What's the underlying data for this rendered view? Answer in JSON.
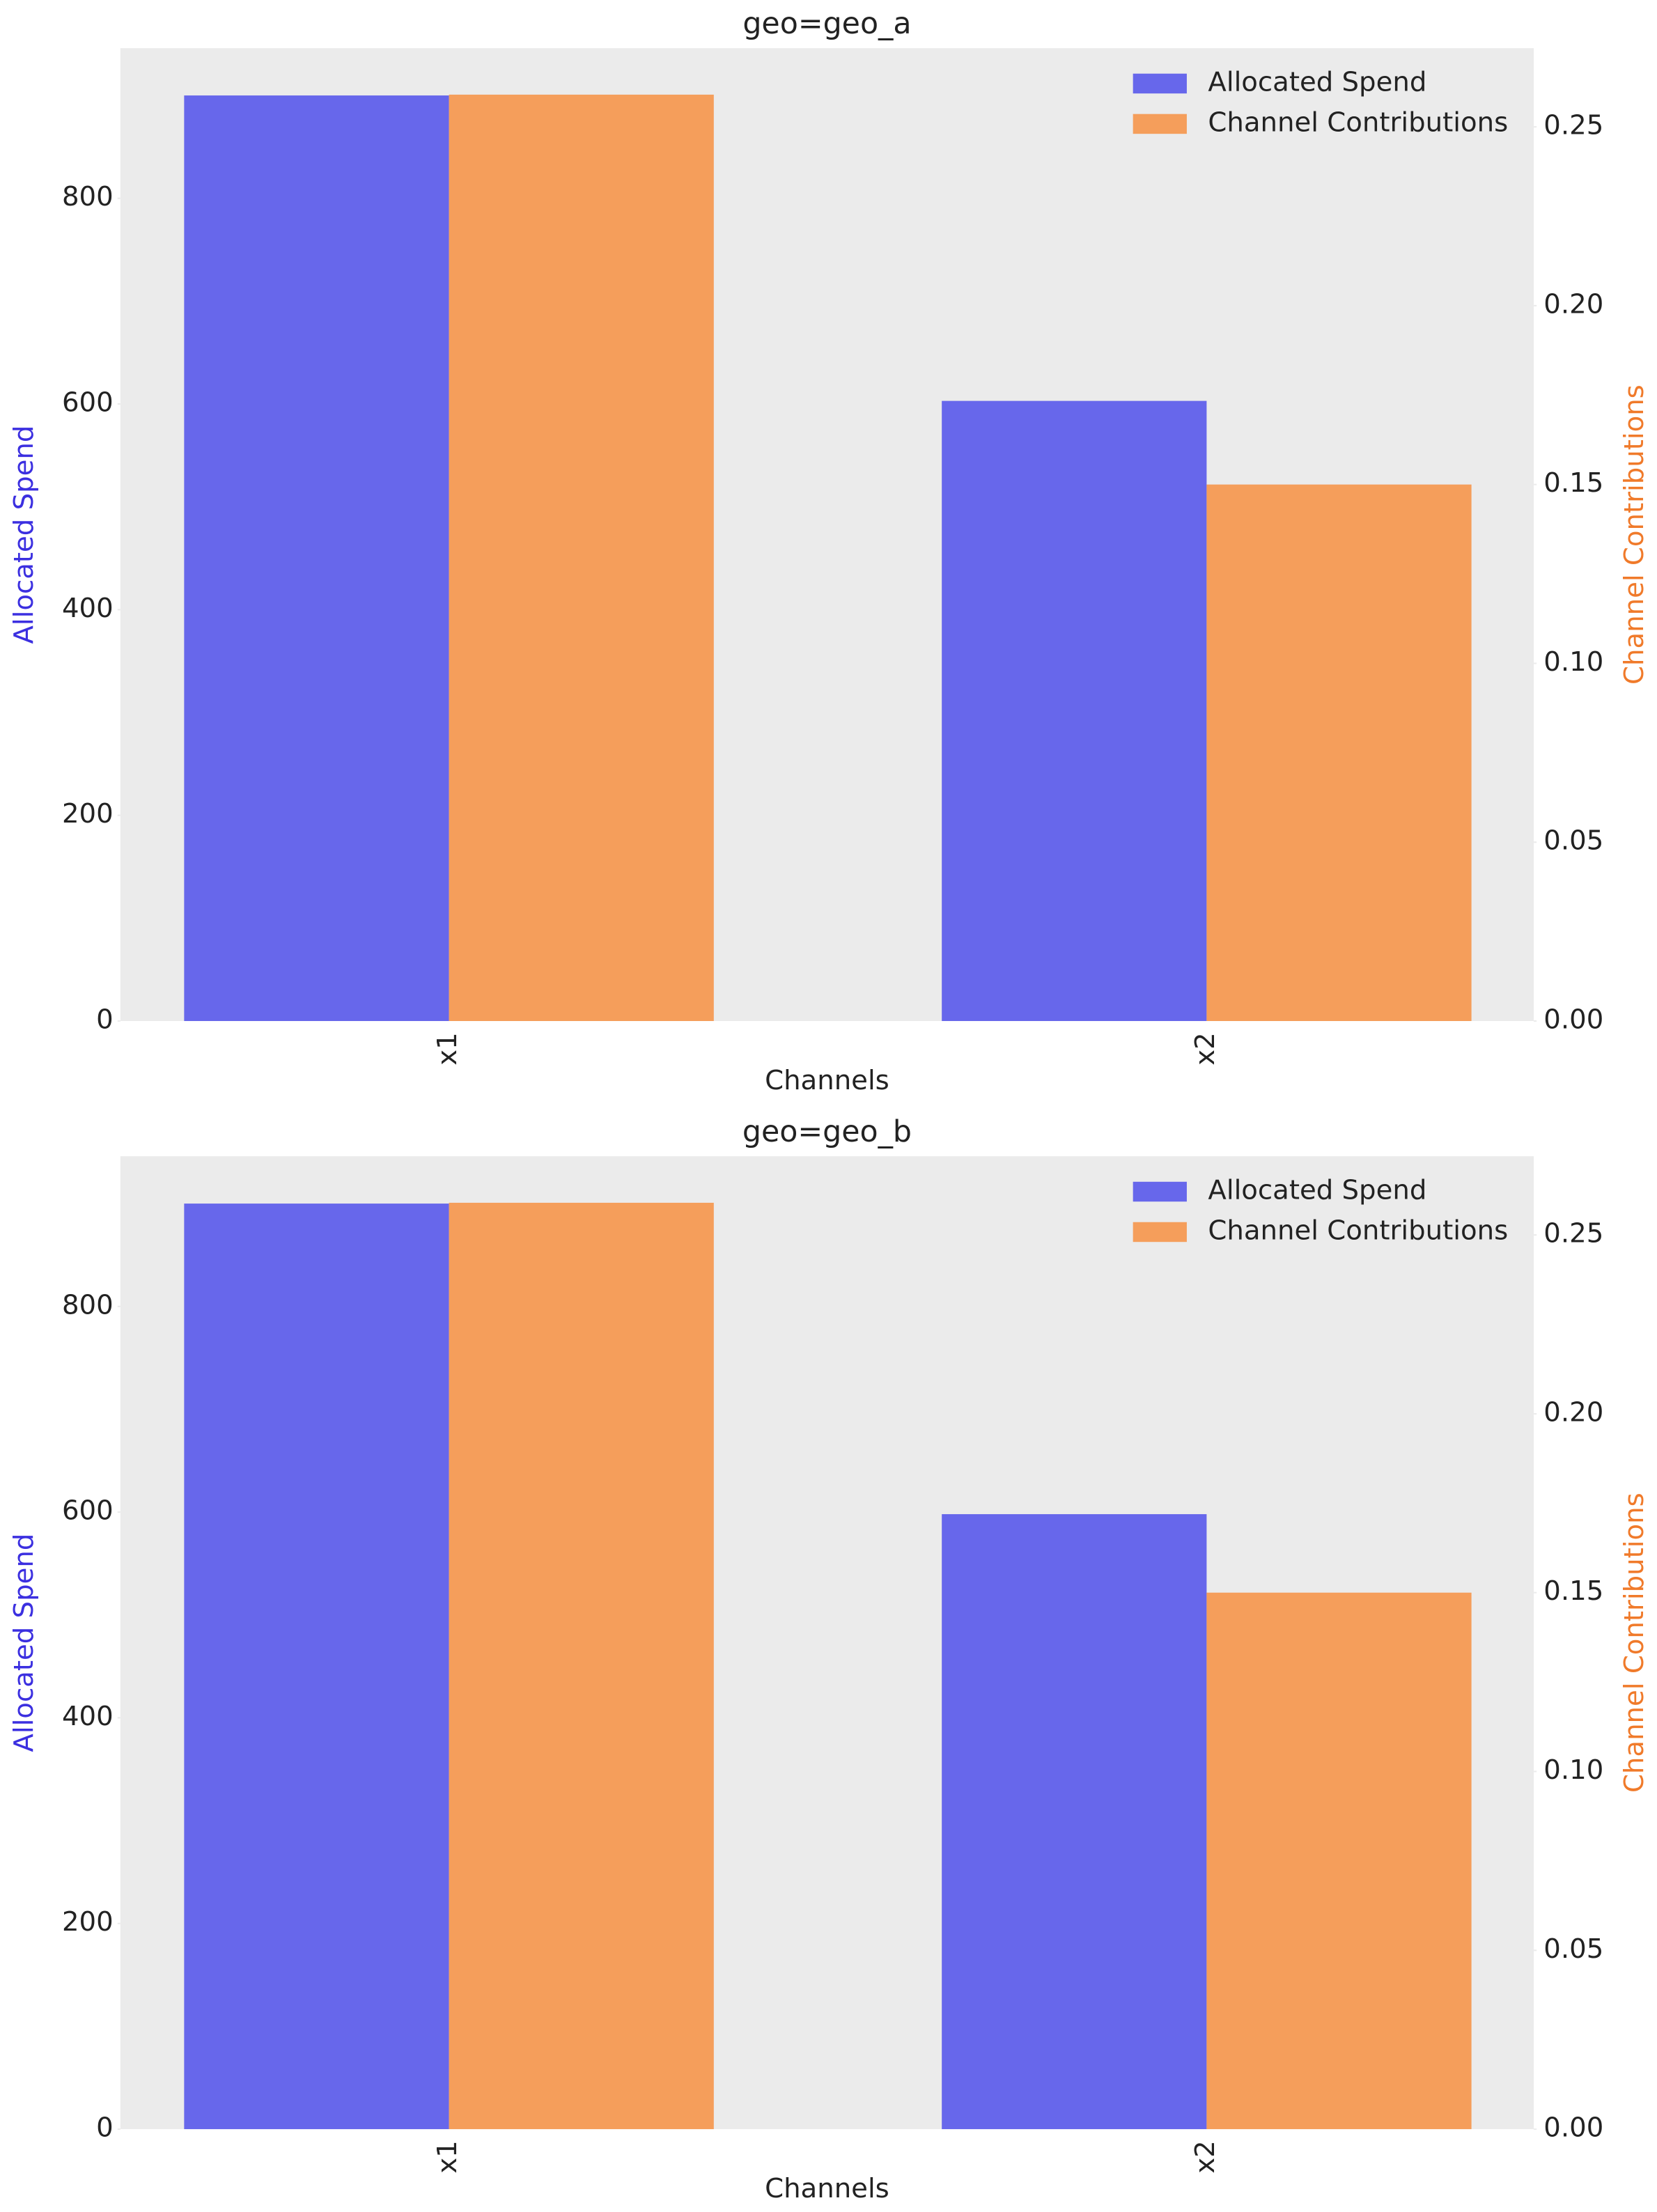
{
  "chart_data": [
    {
      "type": "bar",
      "title": "geo=geo_a",
      "xlabel": "Channels",
      "ylabel": "Allocated Spend",
      "y2label": "Channel Contributions",
      "categories": [
        "x1",
        "x2"
      ],
      "series": [
        {
          "name": "Allocated Spend",
          "color": "#6767eb",
          "values": [
            900,
            603
          ]
        },
        {
          "name": "Channel Contributions",
          "color": "#f59e5b",
          "axis": "y2",
          "values": [
            0.259,
            0.15
          ]
        }
      ],
      "ylim": [
        0,
        946
      ],
      "yticks": [
        0,
        200,
        400,
        600,
        800
      ],
      "y2lim": [
        0,
        0.272
      ],
      "y2ticks": [
        {
          "value": 0,
          "label": "0.00"
        },
        0.05,
        {
          "value": 0.1,
          "label": "0.10"
        },
        0.15,
        {
          "value": 0.2,
          "label": "0.20"
        },
        0.25
      ],
      "ylabel_color": "#3b2fe0",
      "y2label_color": "#f07a2a",
      "legend": "upper right",
      "grid": false
    },
    {
      "type": "bar",
      "title": "geo=geo_b",
      "xlabel": "Channels",
      "ylabel": "Allocated Spend",
      "y2label": "Channel Contributions",
      "categories": [
        "x1",
        "x2"
      ],
      "series": [
        {
          "name": "Allocated Spend",
          "color": "#6767eb",
          "values": [
            900,
            598
          ]
        },
        {
          "name": "Channel Contributions",
          "color": "#f59e5b",
          "axis": "y2",
          "values": [
            0.259,
            0.15
          ]
        }
      ],
      "ylim": [
        0,
        946
      ],
      "yticks": [
        0,
        200,
        400,
        600,
        800
      ],
      "y2lim": [
        0,
        0.272
      ],
      "y2ticks": [
        {
          "value": 0,
          "label": "0.00"
        },
        0.05,
        {
          "value": 0.1,
          "label": "0.10"
        },
        0.15,
        {
          "value": 0.2,
          "label": "0.20"
        },
        0.25
      ],
      "ylabel_color": "#3b2fe0",
      "y2label_color": "#f07a2a",
      "legend": "upper right",
      "grid": false
    }
  ]
}
